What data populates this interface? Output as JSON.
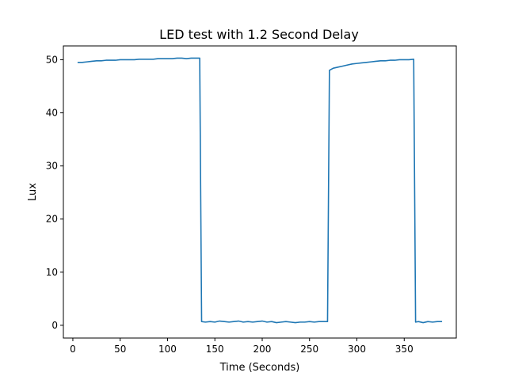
{
  "chart_data": {
    "type": "line",
    "title": "LED test with 1.2 Second Delay",
    "xlabel": "Time (Seconds)",
    "ylabel": "Lux",
    "xlim": [
      -10,
      405
    ],
    "ylim": [
      -2.4,
      52.6
    ],
    "xticks": [
      0,
      50,
      100,
      150,
      200,
      250,
      300,
      350
    ],
    "yticks": [
      0,
      10,
      20,
      30,
      40,
      50
    ],
    "grid": false,
    "colors": {
      "series": "#1f77b4"
    },
    "series": [
      {
        "x": [
          5,
          10,
          15,
          20,
          25,
          30,
          35,
          40,
          45,
          50,
          55,
          60,
          65,
          70,
          75,
          80,
          85,
          90,
          95,
          100,
          105,
          110,
          115,
          120,
          125,
          130,
          134,
          136,
          140,
          145,
          150,
          155,
          160,
          165,
          170,
          175,
          180,
          185,
          190,
          195,
          200,
          205,
          210,
          215,
          220,
          225,
          230,
          235,
          240,
          245,
          250,
          255,
          260,
          265,
          269,
          271,
          275,
          280,
          285,
          290,
          295,
          300,
          305,
          310,
          315,
          320,
          325,
          330,
          335,
          340,
          345,
          350,
          355,
          360,
          362,
          365,
          370,
          375,
          380,
          385,
          390
        ],
        "y": [
          49.5,
          49.5,
          49.6,
          49.7,
          49.8,
          49.8,
          49.9,
          49.9,
          49.9,
          50.0,
          50.0,
          50.0,
          50.0,
          50.1,
          50.1,
          50.1,
          50.1,
          50.2,
          50.2,
          50.2,
          50.2,
          50.3,
          50.3,
          50.2,
          50.3,
          50.3,
          50.3,
          0.7,
          0.6,
          0.7,
          0.6,
          0.8,
          0.7,
          0.6,
          0.7,
          0.8,
          0.6,
          0.7,
          0.6,
          0.7,
          0.8,
          0.6,
          0.7,
          0.5,
          0.6,
          0.7,
          0.6,
          0.5,
          0.6,
          0.6,
          0.7,
          0.6,
          0.7,
          0.7,
          0.7,
          48.0,
          48.4,
          48.6,
          48.8,
          49.0,
          49.2,
          49.3,
          49.4,
          49.5,
          49.6,
          49.7,
          49.8,
          49.8,
          49.9,
          49.9,
          50.0,
          50.0,
          50.0,
          50.1,
          0.6,
          0.7,
          0.5,
          0.7,
          0.6,
          0.7,
          0.7
        ]
      }
    ]
  }
}
